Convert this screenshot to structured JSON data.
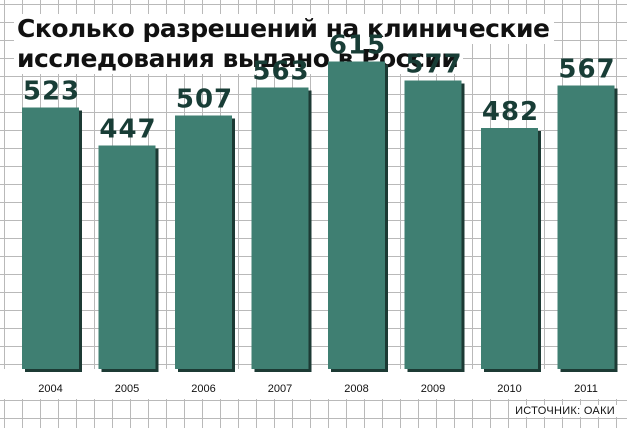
{
  "title_lines": [
    "Сколько разрешений на клинические",
    "исследования выдано в России"
  ],
  "source": "ИСТОЧНИК: ОАКИ",
  "colors": {
    "bar": "#3f7f72",
    "bar_shadow": "#1c3a34",
    "value_label": "#183d36",
    "grid": "#b9b9b9"
  },
  "chart_data": {
    "type": "bar",
    "categories": [
      "2004",
      "2005",
      "2006",
      "2007",
      "2008",
      "2009",
      "2010",
      "2011"
    ],
    "values": [
      523,
      447,
      507,
      563,
      615,
      577,
      482,
      567
    ],
    "title": "Сколько разрешений на клинические исследования выдано в России",
    "xlabel": "",
    "ylabel": "",
    "ylim": [
      0,
      680
    ],
    "grid": true,
    "legend": "none"
  }
}
